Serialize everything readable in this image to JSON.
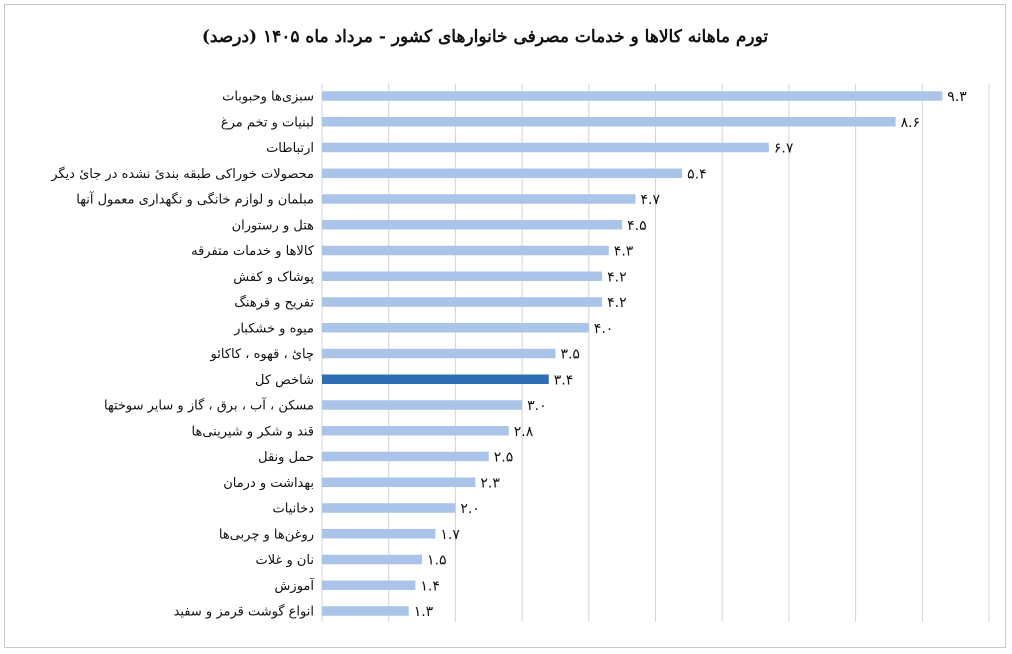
{
  "chart_data": {
    "type": "bar",
    "orientation": "horizontal",
    "title": "تورم ماهانه کالاها و خدمات مصرفی خانوارهای کشور - مرداد ماه ۱۴۰۵ (درصد)",
    "categories": [
      "سبزی‌ها وحبوبات",
      "لبنیات و تخم مرغ",
      "ارتباطات",
      "محصولات خوراکی طبقه بندیٔ نشده در جایٔ دیگر",
      "مبلمان و لوازم خانگی و نگهداری معمول آنها",
      "هتل و رستوران",
      "کالاها و خدمات متفرقه",
      "پوشاک و کفش",
      "تفریح و فرهنگ",
      "میوه و خشکبار",
      "چایٔ ، قهوه ، کاکائو",
      "شاخص کل",
      "مسکن ، آب ، برق ، گاز و سایر سوختها",
      "قند و شکر و شیرینی‌ها",
      "حمل ونقل",
      "بهداشت و درمان",
      "دخانیات",
      "روغن‌ها و چربی‌ها",
      "نان و غلات",
      "آموزش",
      "انواع گوشت قرمز و سفید"
    ],
    "values": [
      9.3,
      8.6,
      6.7,
      5.4,
      4.7,
      4.5,
      4.3,
      4.2,
      4.2,
      4.0,
      3.5,
      3.4,
      3.0,
      2.8,
      2.5,
      2.3,
      2.0,
      1.7,
      1.5,
      1.4,
      1.3
    ],
    "value_labels": [
      "۹.۳",
      "۸.۶",
      "۶.۷",
      "۵.۴",
      "۴.۷",
      "۴.۵",
      "۴.۳",
      "۴.۲",
      "۴.۲",
      "۴.۰",
      "۳.۵",
      "۳.۴",
      "۳.۰",
      "۲.۸",
      "۲.۵",
      "۲.۳",
      "۲.۰",
      "۱.۷",
      "۱.۵",
      "۱.۴",
      "۱.۳"
    ],
    "highlight_category": "شاخص کل",
    "xlim": [
      0,
      10
    ],
    "grid": true,
    "legend": "none",
    "colors": {
      "bar": "#a9c4e8",
      "highlight": "#2e6db4",
      "grid": "#d4d4d4"
    }
  }
}
